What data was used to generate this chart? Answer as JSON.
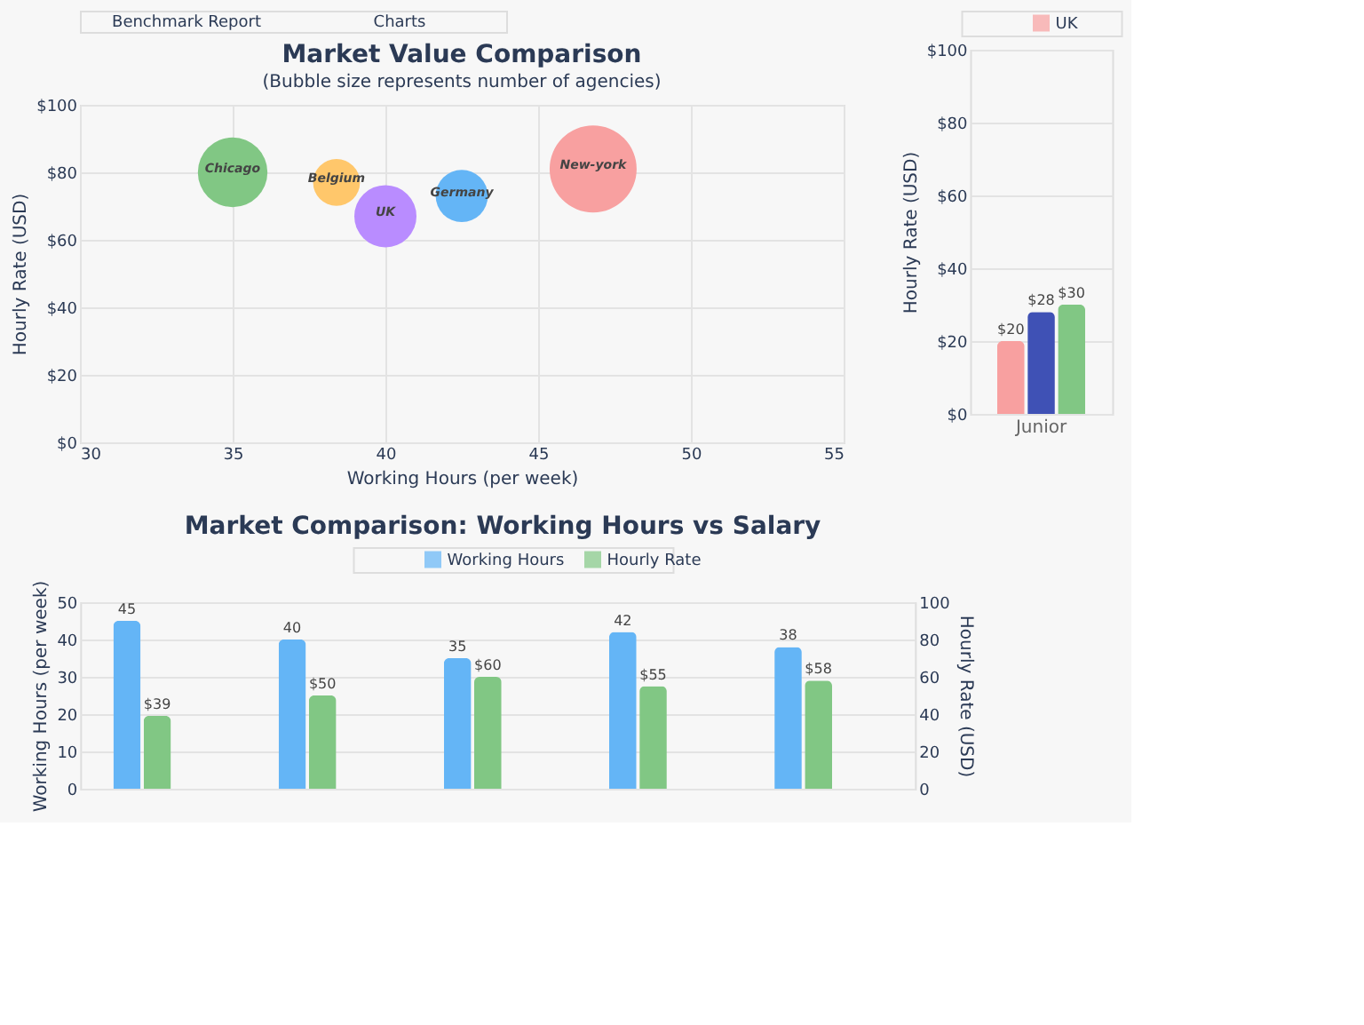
{
  "chart_data": [
    {
      "type": "bubble",
      "title": "Market Value Comparison",
      "subtitle": "(Bubble size represents number of agencies)",
      "xlabel": "Working Hours (per week)",
      "ylabel": "Hourly Rate (USD)",
      "annotations": [
        "Benchmark Report",
        "Charts"
      ],
      "series": [
        {
          "name": "Chicago",
          "color": "#81c784",
          "x": [
            35
          ],
          "values": [
            80
          ],
          "sizes": [
            0.64
          ]
        },
        {
          "name": "Belgium",
          "color": "#ffc76b",
          "x": [
            38.4
          ],
          "values": [
            77
          ],
          "sizes": [
            0.29
          ]
        },
        {
          "name": "UK",
          "color": "#b98cff",
          "x": [
            40
          ],
          "values": [
            67
          ],
          "sizes": [
            0.51
          ]
        },
        {
          "name": "Germany",
          "color": "#64b5f6",
          "x": [
            42.5
          ],
          "values": [
            73
          ],
          "sizes": [
            0.36
          ]
        },
        {
          "name": "New-york",
          "color": "#f8a0a0",
          "x": [
            46.8
          ],
          "values": [
            81
          ],
          "sizes": [
            1
          ]
        }
      ],
      "xlim": [
        30,
        55
      ],
      "xticks": [
        30,
        35,
        40,
        45,
        50,
        55
      ],
      "ylim": [
        0,
        100
      ],
      "yticks": [
        {
          "value": 0,
          "label": "$0"
        },
        {
          "value": 20,
          "label": "$20"
        },
        {
          "value": 40,
          "label": "$40"
        },
        {
          "value": 60,
          "label": "$60"
        },
        {
          "value": 80,
          "label": "$80"
        },
        {
          "value": 100,
          "label": "$100"
        }
      ],
      "grid": true,
      "legend": false
    },
    {
      "type": "bar",
      "categories": [
        "Junior"
      ],
      "ylabel": "Hourly Rate (USD)",
      "series": [
        {
          "name": "UK",
          "color": "#f8a0a0",
          "values": [
            20
          ],
          "value_labels": [
            "$20"
          ]
        },
        {
          "color": "#3f51b5",
          "values": [
            28
          ],
          "value_labels": [
            "$28"
          ]
        },
        {
          "color": "#81c784",
          "values": [
            30
          ],
          "value_labels": [
            "$30"
          ]
        }
      ],
      "ylim": [
        0,
        100
      ],
      "yticks": [
        {
          "value": 0,
          "label": "$0"
        },
        {
          "value": 20,
          "label": "$20"
        },
        {
          "value": 40,
          "label": "$40"
        },
        {
          "value": 60,
          "label": "$60"
        },
        {
          "value": 80,
          "label": "$80"
        },
        {
          "value": 100,
          "label": "$100"
        }
      ],
      "grid": "y",
      "legend": "top"
    },
    {
      "type": "bar",
      "title": "Market Comparison: Working Hours vs Salary",
      "categories": [
        null,
        null,
        null,
        null,
        null
      ],
      "ylabel": "Working Hours (per week)",
      "y2label": "Hourly Rate (USD)",
      "series": [
        {
          "name": "Working Hours",
          "color": "#64b5f6",
          "values": [
            45,
            40,
            35,
            42,
            38
          ],
          "value_labels": [
            "45",
            "40",
            "35",
            "42",
            "38"
          ]
        },
        {
          "name": "Hourly Rate",
          "color": "#81c784",
          "axis": "y2",
          "values": [
            39,
            50,
            60,
            55,
            58
          ],
          "value_labels": [
            "$39",
            "$50",
            "$60",
            "$55",
            "$58"
          ]
        }
      ],
      "ylim": [
        0,
        50
      ],
      "yticks": [
        0,
        10,
        20,
        30,
        40,
        50
      ],
      "y2lim": [
        0,
        100
      ],
      "y2ticks": [
        0,
        20,
        40,
        60,
        80,
        100
      ],
      "grid": "y",
      "legend": "top"
    }
  ]
}
